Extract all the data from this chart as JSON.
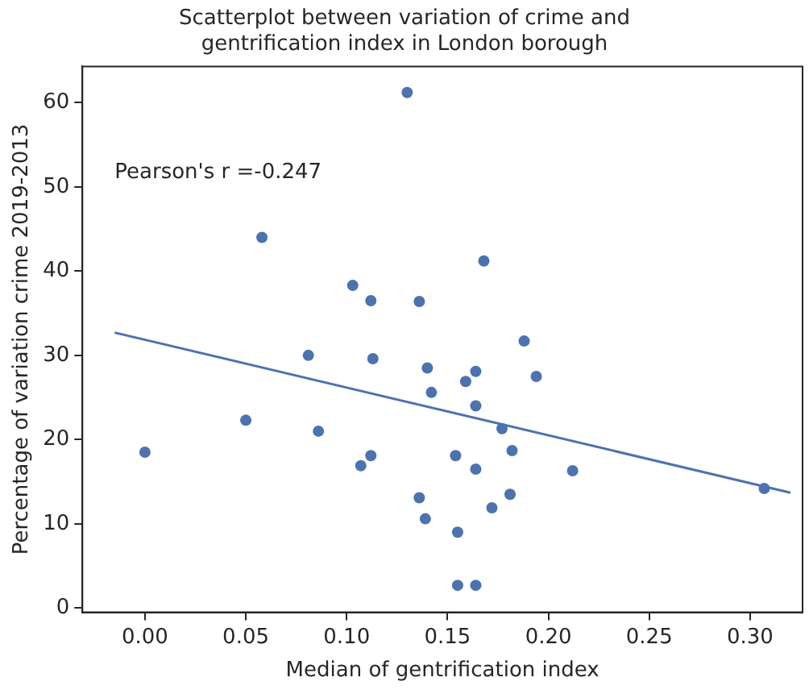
{
  "chart_data": {
    "type": "scatter",
    "title": "Scatterplot between variation of crime and\ngentrification index in London borough",
    "xlabel": "Median of gentrification index",
    "ylabel": "Percentage of variation crime 2019-2013",
    "annotations": [
      "Pearson's r =-0.247"
    ],
    "series": [
      {
        "type": "scatter",
        "color": "#4c72b0",
        "marker": "circle",
        "x": [
          0,
          0.05,
          0.058,
          0.086,
          0.081,
          0.103,
          0.112,
          0.113,
          0.107,
          0.112,
          0.13,
          0.136,
          0.14,
          0.142,
          0.136,
          0.139,
          0.168,
          0.188,
          0.164,
          0.194,
          0.159,
          0.164,
          0.177,
          0.182,
          0.154,
          0.164,
          0.212,
          0.307,
          0.181,
          0.172,
          0.155,
          0.155,
          0.164
        ],
        "values": [
          18.5,
          22.3,
          44.0,
          21.0,
          30.0,
          38.3,
          36.5,
          29.6,
          16.9,
          18.1,
          61.2,
          36.4,
          28.5,
          25.6,
          13.1,
          10.6,
          41.2,
          31.7,
          28.1,
          27.5,
          26.9,
          24.0,
          21.3,
          18.7,
          18.1,
          16.5,
          16.3,
          14.2,
          13.5,
          11.9,
          9.0,
          2.7,
          2.7
        ]
      },
      {
        "type": "line",
        "color": "#4c72b0",
        "marker": "none",
        "x": [
          -0.015,
          0.32
        ],
        "values": [
          32.7,
          13.7
        ]
      }
    ],
    "xlim": [
      -0.031,
      0.326
    ],
    "xticks": [
      {
        "value": 0,
        "label": "0.00"
      },
      {
        "value": 0.05,
        "label": "0.05"
      },
      {
        "value": 0.1,
        "label": "0.10"
      },
      {
        "value": 0.15,
        "label": "0.15"
      },
      {
        "value": 0.2,
        "label": "0.20"
      },
      {
        "value": 0.25,
        "label": "0.25"
      },
      {
        "value": 0.3,
        "label": "0.30"
      }
    ],
    "ylim": [
      -0.5,
      64.3
    ],
    "yticks": [
      0,
      10,
      20,
      30,
      40,
      50,
      60
    ],
    "grid": false,
    "legend": false
  }
}
